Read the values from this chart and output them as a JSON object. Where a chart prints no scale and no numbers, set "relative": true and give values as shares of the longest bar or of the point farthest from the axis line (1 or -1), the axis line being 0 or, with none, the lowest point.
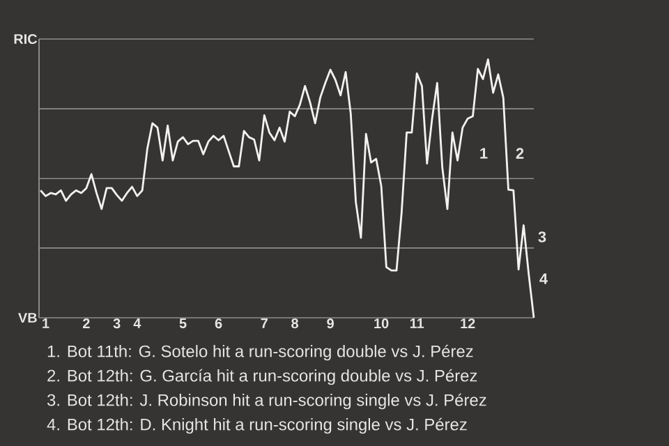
{
  "chart_data": {
    "type": "line",
    "relative": true,
    "categories": [
      null,
      "1",
      null,
      null,
      null,
      null,
      null,
      null,
      null,
      "2",
      null,
      null,
      null,
      null,
      null,
      "3",
      null,
      null,
      null,
      "4",
      null,
      null,
      null,
      null,
      null,
      null,
      null,
      null,
      "5",
      null,
      null,
      null,
      null,
      null,
      null,
      "6",
      null,
      null,
      null,
      null,
      null,
      null,
      null,
      null,
      "7",
      null,
      null,
      null,
      null,
      null,
      "8",
      null,
      null,
      null,
      null,
      null,
      null,
      "9",
      null,
      null,
      null,
      null,
      null,
      null,
      null,
      null,
      null,
      "10",
      null,
      null,
      null,
      null,
      null,
      null,
      "11",
      null,
      null,
      null,
      null,
      null,
      null,
      null,
      null,
      null,
      "12",
      null,
      null,
      null,
      null,
      null,
      null,
      null,
      null,
      null,
      null,
      null,
      null,
      null
    ],
    "series": [
      {
        "color": "#f2f2f2",
        "values": [
          0.493,
          0.471,
          0.483,
          0.478,
          0.493,
          0.453,
          0.478,
          0.493,
          0.483,
          0.502,
          0.556,
          0.483,
          0.421,
          0.502,
          0.502,
          0.475,
          0.453,
          0.483,
          0.507,
          0.471,
          0.493,
          0.655,
          0.753,
          0.736,
          0.609,
          0.744,
          0.609,
          0.682,
          0.699,
          0.672,
          0.685,
          0.685,
          0.633,
          0.682,
          0.704,
          0.687,
          0.704,
          0.645,
          0.586,
          0.586,
          0.723,
          0.699,
          0.69,
          0.609,
          0.784,
          0.717,
          0.687,
          0.736,
          0.682,
          0.798,
          0.78,
          0.825,
          0.897,
          0.834,
          0.753,
          0.852,
          0.909,
          0.96,
          0.92,
          0.861,
          0.951,
          0.79,
          0.448,
          0.31,
          0.712,
          0.601,
          0.615,
          0.51,
          0.196,
          0.183,
          0.183,
          0.407,
          0.717,
          0.717,
          0.946,
          0.897,
          0.597,
          0.771,
          0.909,
          0.583,
          0.421,
          0.717,
          0.609,
          0.736,
          0.771,
          0.78,
          0.963,
          0.924,
          1,
          0.871,
          0.942,
          0.852,
          0.496,
          0.493,
          0.187,
          0.358,
          0.169,
          0
        ]
      }
    ],
    "ref_lines": [
      {
        "axis": "y",
        "value": 0,
        "label": "VB",
        "color": "#8c8c8c"
      },
      {
        "axis": "y",
        "value": 0.27,
        "color": "#8c8c8c"
      },
      {
        "axis": "y",
        "value": 0.539,
        "color": "#8c8c8c"
      },
      {
        "axis": "y",
        "value": 0.809,
        "color": "#8c8c8c"
      },
      {
        "axis": "y",
        "value": 1.079,
        "label": "RIC",
        "color": "#8c8c8c"
      }
    ],
    "annotations": [
      "1",
      "2",
      "3",
      "4",
      "1. Bot 11th: G. Sotelo hit a run-scoring double vs J. Pérez",
      "2. Bot 12th: G. García hit a run-scoring double vs J. Pérez",
      "3. Bot 12th: J. Robinson hit a run-scoring single vs J. Pérez",
      "4. Bot 12th: D. Knight hit a run-scoring single vs J. Pérez"
    ]
  }
}
